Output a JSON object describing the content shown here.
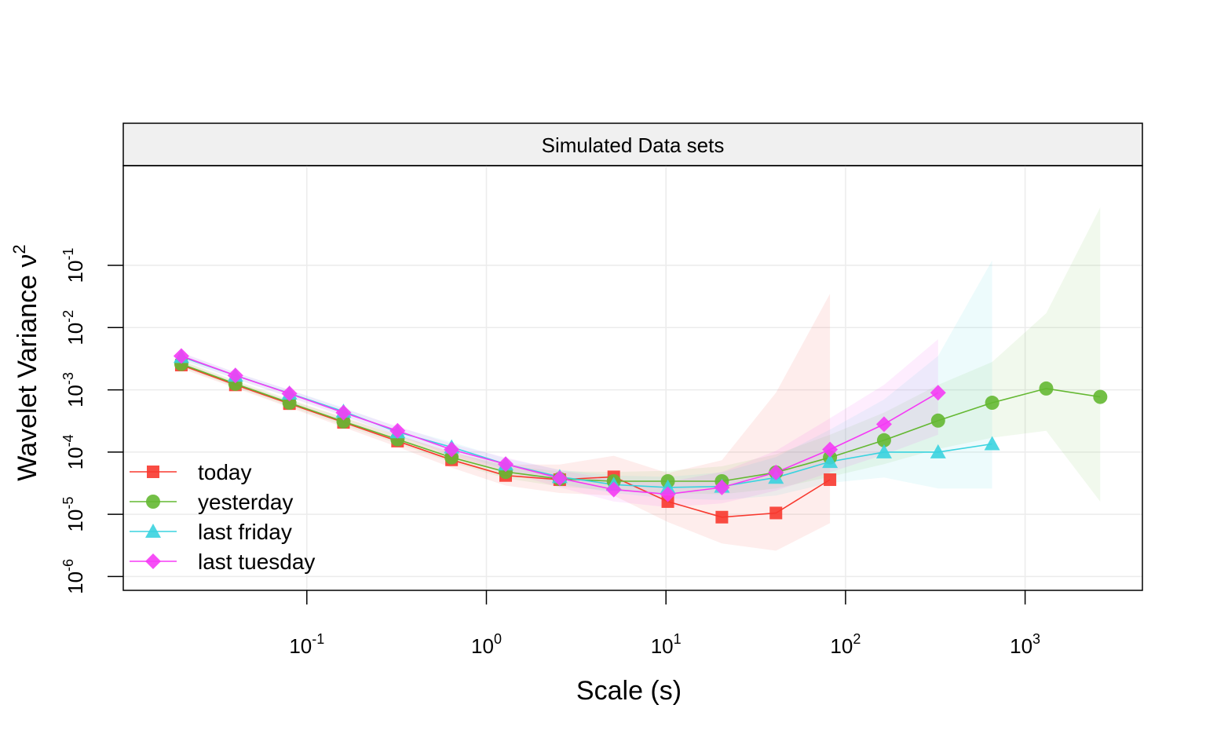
{
  "chart_data": {
    "type": "line",
    "panel_title": "Simulated Data sets",
    "xlabel": "Scale (s)",
    "ylabel": "Wavelet Variance ν",
    "ylabel_sup": "2",
    "xscale": "log10",
    "yscale": "log10",
    "xlim": [
      0.0095,
      4500
    ],
    "ylim": [
      6e-07,
      4
    ],
    "grid": true,
    "legend_position": "bottom-left",
    "x_ticks": [
      {
        "value": 0.1,
        "base": "10",
        "exp": "-1"
      },
      {
        "value": 1,
        "base": "10",
        "exp": "0"
      },
      {
        "value": 10,
        "base": "10",
        "exp": "1"
      },
      {
        "value": 100,
        "base": "10",
        "exp": "2"
      },
      {
        "value": 1000,
        "base": "10",
        "exp": "3"
      }
    ],
    "y_ticks": [
      {
        "value": 1e-06,
        "base": "10",
        "exp": "-6"
      },
      {
        "value": 1e-05,
        "base": "10",
        "exp": "-5"
      },
      {
        "value": 0.0001,
        "base": "10",
        "exp": "-4"
      },
      {
        "value": 0.001,
        "base": "10",
        "exp": "-3"
      },
      {
        "value": 0.01,
        "base": "10",
        "exp": "-2"
      },
      {
        "value": 0.1,
        "base": "10",
        "exp": "-1"
      }
    ],
    "series": [
      {
        "name": "today",
        "color": "#F8392F",
        "marker": "square",
        "x": [
          0.02,
          0.04,
          0.08,
          0.16,
          0.32,
          0.64,
          1.28,
          2.56,
          5.12,
          10.24,
          20.48,
          40.96,
          81.92
        ],
        "y": [
          0.0025,
          0.0012,
          0.0006,
          0.0003,
          0.00015,
          7.5e-05,
          4.2e-05,
          3.6e-05,
          4e-05,
          1.6e-05,
          9e-06,
          1.05e-05,
          3.6e-05
        ],
        "ci_lower": [
          0.0022,
          0.00107,
          0.00052,
          0.00025,
          0.000121,
          5.6e-05,
          2.9e-05,
          2.2e-05,
          2e-05,
          7.5e-06,
          3.4e-06,
          2.6e-06,
          7.2e-06
        ],
        "ci_upper": [
          0.0029,
          0.00135,
          0.00068,
          0.00036,
          0.000184,
          0.0001,
          6.3e-05,
          6.3e-05,
          8.7e-05,
          4.6e-05,
          7.4e-05,
          0.0009,
          0.035
        ]
      },
      {
        "name": "yesterday",
        "color": "#64B832",
        "marker": "circle",
        "x": [
          0.02,
          0.04,
          0.08,
          0.16,
          0.32,
          0.64,
          1.28,
          2.56,
          5.12,
          10.24,
          20.48,
          40.96,
          81.92,
          163.84,
          327.68,
          655.36,
          1310.72,
          2621.44
        ],
        "y": [
          0.0026,
          0.00125,
          0.00062,
          0.00031,
          0.00016,
          8.2e-05,
          4.8e-05,
          3.7e-05,
          3.4e-05,
          3.4e-05,
          3.4e-05,
          4.7e-05,
          8.2e-05,
          0.000155,
          0.00032,
          0.00062,
          0.00105,
          0.00077
        ],
        "ci_lower": [
          0.0023,
          0.00111,
          0.00054,
          0.00027,
          0.000136,
          6.8e-05,
          3.8e-05,
          2.8e-05,
          2.4e-05,
          2.2e-05,
          2.1e-05,
          2.6e-05,
          4e-05,
          6.4e-05,
          0.000112,
          0.00017,
          0.00022,
          1.6e-05
        ],
        "ci_upper": [
          0.003,
          0.00142,
          0.00071,
          0.00036,
          0.000188,
          9.9e-05,
          6e-05,
          4.9e-05,
          4.8e-05,
          5e-05,
          5.9e-05,
          9.2e-05,
          0.00019,
          0.00043,
          0.0012,
          0.0028,
          0.017,
          0.85
        ]
      },
      {
        "name": "last friday",
        "color": "#3AD3DF",
        "marker": "triangle",
        "x": [
          0.02,
          0.04,
          0.08,
          0.16,
          0.32,
          0.64,
          1.28,
          2.56,
          5.12,
          10.24,
          20.48,
          40.96,
          81.92,
          163.84,
          327.68,
          655.36
        ],
        "y": [
          0.0034,
          0.0017,
          0.00088,
          0.00045,
          0.00021,
          0.00012,
          6.4e-05,
          4e-05,
          3e-05,
          2.7e-05,
          2.8e-05,
          3.9e-05,
          7e-05,
          0.0001,
          0.0001,
          0.000135
        ],
        "ci_lower": [
          0.003,
          0.0015,
          0.00077,
          0.00039,
          0.000178,
          0.0001,
          5.2e-05,
          3.1e-05,
          2.2e-05,
          1.8e-05,
          1.7e-05,
          2e-05,
          3.2e-05,
          3.9e-05,
          2.6e-05,
          2.6e-05
        ],
        "ci_upper": [
          0.0039,
          0.0019,
          0.001,
          0.00052,
          0.00025,
          0.000145,
          7.9e-05,
          5.2e-05,
          4.2e-05,
          4e-05,
          4.7e-05,
          8.3e-05,
          0.00023,
          0.0007,
          0.0035,
          0.12
        ]
      },
      {
        "name": "last tuesday",
        "color": "#F53BF5",
        "marker": "diamond",
        "x": [
          0.02,
          0.04,
          0.08,
          0.16,
          0.32,
          0.64,
          1.28,
          2.56,
          5.12,
          10.24,
          20.48,
          40.96,
          81.92,
          163.84,
          327.68
        ],
        "y": [
          0.0035,
          0.0017,
          0.00087,
          0.00043,
          0.00022,
          0.00011,
          6.4e-05,
          3.8e-05,
          2.5e-05,
          2.1e-05,
          2.7e-05,
          4.7e-05,
          0.00011,
          0.00028,
          0.0009
        ],
        "ci_lower": [
          0.0031,
          0.0015,
          0.00076,
          0.00037,
          0.000185,
          8.8e-05,
          4.8e-05,
          2.7e-05,
          1.6e-05,
          1.3e-05,
          1.5e-05,
          2.4e-05,
          4.7e-05,
          9.1e-05,
          0.00019
        ],
        "ci_upper": [
          0.004,
          0.0019,
          0.001,
          0.0005,
          0.00026,
          0.000135,
          8.2e-05,
          5.1e-05,
          3.6e-05,
          3.3e-05,
          4.8e-05,
          0.000105,
          0.00035,
          0.0012,
          0.0065
        ]
      }
    ]
  }
}
